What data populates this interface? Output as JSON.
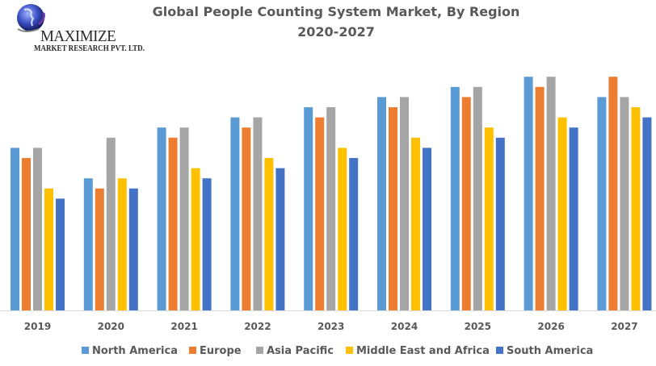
{
  "logo": {
    "brand": "MAXIMIZE",
    "subtitle": "MARKET RESEARCH PVT. LTD."
  },
  "chart_data": {
    "type": "bar",
    "title": "Global People Counting System Market, By Region",
    "subtitle": "2020-2027",
    "xlabel": "",
    "ylabel": "",
    "ylim": [
      0,
      24
    ],
    "grid": false,
    "legend_position": "bottom",
    "categories": [
      "2019",
      "2020",
      "2021",
      "2022",
      "2023",
      "2024",
      "2025",
      "2026",
      "2027"
    ],
    "series": [
      {
        "name": "North America",
        "color": "#5B9BD5",
        "values": [
          16,
          13,
          18,
          19,
          20,
          21,
          22,
          23,
          21
        ]
      },
      {
        "name": "Europe",
        "color": "#ED7D31",
        "values": [
          15,
          12,
          17,
          18,
          19,
          20,
          21,
          22,
          23
        ]
      },
      {
        "name": "Asia Pacific",
        "color": "#A5A5A5",
        "values": [
          16,
          17,
          18,
          19,
          20,
          21,
          22,
          23,
          21
        ]
      },
      {
        "name": "Middle East and Africa",
        "color": "#FFC000",
        "values": [
          12,
          13,
          14,
          15,
          16,
          17,
          18,
          19,
          20
        ]
      },
      {
        "name": "South America",
        "color": "#4472C4",
        "values": [
          11,
          12,
          13,
          14,
          15,
          16,
          17,
          18,
          19
        ]
      }
    ]
  }
}
